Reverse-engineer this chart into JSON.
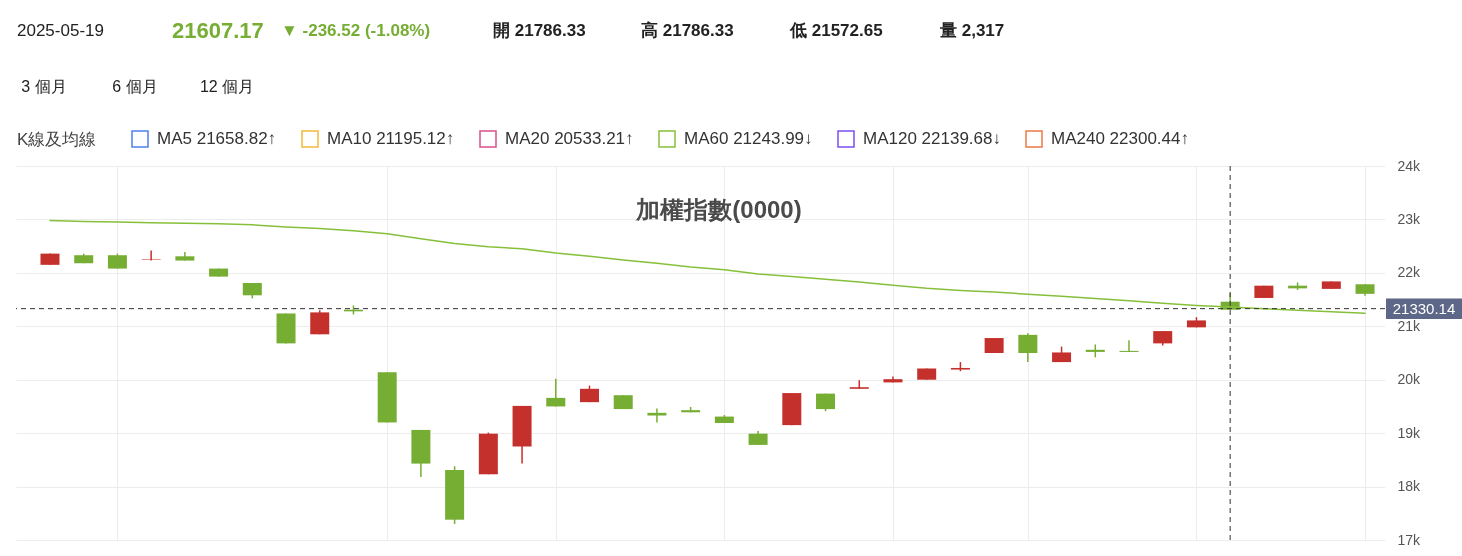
{
  "chart_data": {
    "type": "candlestick",
    "title": "加權指數(0000)",
    "annotations": [
      "2025-05-19",
      "21607.17",
      "▼ -236.52 (-1.08%)",
      "開 21786.33",
      "高 21786.33",
      "低 21572.65",
      "量 2,317",
      "3 個月",
      "6 個月",
      "12 個月"
    ],
    "categories": [
      null,
      null,
      null,
      null,
      null,
      null,
      null,
      null,
      null,
      null,
      null,
      null,
      null,
      null,
      null,
      null,
      null,
      null,
      null,
      null,
      null,
      null,
      null,
      null,
      null,
      null,
      null,
      null,
      null,
      null,
      null,
      null,
      null,
      null,
      null,
      null,
      null,
      null,
      null,
      null
    ],
    "ohlc": [
      [
        22150,
        22360,
        22150,
        22360
      ],
      [
        22330,
        22360,
        22180,
        22180
      ],
      [
        22330,
        22360,
        22080,
        22080
      ],
      [
        22250,
        22420,
        22230,
        22260
      ],
      [
        22310,
        22390,
        22230,
        22230
      ],
      [
        22080,
        22080,
        21930,
        21930
      ],
      [
        21810,
        21810,
        21520,
        21580
      ],
      [
        21240,
        21240,
        20680,
        20680
      ],
      [
        20850,
        21300,
        20850,
        21260
      ],
      [
        21310,
        21390,
        21220,
        21280
      ],
      [
        20140,
        20140,
        19200,
        19200
      ],
      [
        19060,
        19060,
        18180,
        18430
      ],
      [
        18310,
        18380,
        17300,
        17380
      ],
      [
        18230,
        19010,
        18230,
        18990
      ],
      [
        18750,
        19510,
        18430,
        19510
      ],
      [
        19660,
        20020,
        19500,
        19500
      ],
      [
        19580,
        19890,
        19580,
        19830
      ],
      [
        19710,
        19710,
        19450,
        19450
      ],
      [
        19380,
        19460,
        19200,
        19330
      ],
      [
        19430,
        19490,
        19390,
        19390
      ],
      [
        19310,
        19340,
        19190,
        19190
      ],
      [
        18990,
        19040,
        18780,
        18780
      ],
      [
        19150,
        19750,
        19150,
        19750
      ],
      [
        19740,
        19740,
        19410,
        19450
      ],
      [
        19830,
        19990,
        19830,
        19860
      ],
      [
        19950,
        20060,
        19950,
        20010
      ],
      [
        20000,
        20210,
        20000,
        20210
      ],
      [
        20190,
        20330,
        20160,
        20220
      ],
      [
        20500,
        20780,
        20500,
        20780
      ],
      [
        20840,
        20870,
        20330,
        20500
      ],
      [
        20330,
        20620,
        20330,
        20510
      ],
      [
        20560,
        20660,
        20420,
        20520
      ],
      [
        20540,
        20740,
        20520,
        20520
      ],
      [
        20680,
        20910,
        20640,
        20910
      ],
      [
        20980,
        21170,
        20980,
        21110
      ],
      [
        21460,
        21620,
        21310,
        21310
      ],
      [
        21530,
        21760,
        21530,
        21760
      ],
      [
        21760,
        21820,
        21680,
        21710
      ],
      [
        21700,
        21840,
        21700,
        21840
      ],
      [
        21786.33,
        21786.33,
        21572.65,
        21607.17
      ]
    ],
    "colors": [
      "#c4302b",
      "#76ad33",
      "#76ad33",
      "#c4302b",
      "#76ad33",
      "#76ad33",
      "#76ad33",
      "#76ad33",
      "#c4302b",
      "#76ad33",
      "#76ad33",
      "#76ad33",
      "#76ad33",
      "#c4302b",
      "#c4302b",
      "#76ad33",
      "#c4302b",
      "#76ad33",
      "#76ad33",
      "#76ad33",
      "#76ad33",
      "#76ad33",
      "#c4302b",
      "#76ad33",
      "#c4302b",
      "#c4302b",
      "#c4302b",
      "#c4302b",
      "#c4302b",
      "#76ad33",
      "#c4302b",
      "#76ad33",
      "#76ad33",
      "#c4302b",
      "#c4302b",
      "#76ad33",
      "#c4302b",
      "#76ad33",
      "#c4302b",
      "#76ad33"
    ],
    "series": [
      {
        "name": "MA5 21658.82↑",
        "color": "#4f80f0",
        "type": "line",
        "values": [
          null,
          null,
          null,
          null,
          null,
          null,
          null,
          null,
          null,
          null,
          null,
          null,
          null,
          null,
          null,
          null,
          null,
          null,
          null,
          null,
          null,
          null,
          null,
          null,
          null,
          null,
          null,
          null,
          null,
          null,
          null,
          null,
          null,
          null,
          null,
          null,
          null,
          null,
          null,
          null
        ]
      },
      {
        "name": "MA10 21195.12↑",
        "color": "#f4b93c",
        "type": "line",
        "values": [
          null,
          null,
          null,
          null,
          null,
          null,
          null,
          null,
          null,
          null,
          null,
          null,
          null,
          null,
          null,
          null,
          null,
          null,
          null,
          null,
          null,
          null,
          null,
          null,
          null,
          null,
          null,
          null,
          null,
          null,
          null,
          null,
          null,
          null,
          null,
          null,
          null,
          null,
          null,
          null
        ]
      },
      {
        "name": "MA20 20533.21↑",
        "color": "#d9508a",
        "type": "line",
        "values": [
          null,
          null,
          null,
          null,
          null,
          null,
          null,
          null,
          null,
          null,
          null,
          null,
          null,
          null,
          null,
          null,
          null,
          null,
          null,
          null,
          null,
          null,
          null,
          null,
          null,
          null,
          null,
          null,
          null,
          null,
          null,
          null,
          null,
          null,
          null,
          null,
          null,
          null,
          null,
          null
        ]
      },
      {
        "name": "MA60 21243.99↓",
        "color": "#86c03a",
        "type": "line",
        "values": [
          22980,
          22960,
          22950,
          22940,
          22930,
          22920,
          22900,
          22860,
          22830,
          22790,
          22730,
          22640,
          22550,
          22490,
          22450,
          22370,
          22310,
          22240,
          22180,
          22110,
          22060,
          21980,
          21930,
          21880,
          21830,
          21770,
          21710,
          21670,
          21640,
          21600,
          21560,
          21520,
          21480,
          21430,
          21390,
          21360,
          21330,
          21300,
          21270,
          21243.99
        ]
      },
      {
        "name": "MA120 22139.68↓",
        "color": "#7b4fef",
        "type": "line",
        "values": [
          null,
          null,
          null,
          null,
          null,
          null,
          null,
          null,
          null,
          null,
          null,
          null,
          null,
          null,
          null,
          null,
          null,
          null,
          null,
          null,
          null,
          null,
          null,
          null,
          null,
          null,
          null,
          null,
          null,
          null,
          null,
          null,
          null,
          null,
          null,
          null,
          null,
          null,
          null,
          null
        ]
      },
      {
        "name": "MA240 22300.44↑",
        "color": "#ec7a46",
        "type": "line",
        "values": [
          null,
          null,
          null,
          null,
          null,
          null,
          null,
          null,
          null,
          null,
          null,
          null,
          null,
          null,
          null,
          null,
          null,
          null,
          null,
          null,
          null,
          null,
          null,
          null,
          null,
          null,
          null,
          null,
          null,
          null,
          null,
          null,
          null,
          null,
          null,
          null,
          null,
          null,
          null,
          null
        ]
      }
    ],
    "ylim": [
      17000,
      24000
    ],
    "yticks": [
      {
        "value": 17000,
        "label": "17k"
      },
      {
        "value": 18000,
        "label": "18k"
      },
      {
        "value": 19000,
        "label": "19k"
      },
      {
        "value": 20000,
        "label": "20k"
      },
      {
        "value": 21000,
        "label": "21k"
      },
      {
        "value": 22000,
        "label": "22k"
      },
      {
        "value": 23000,
        "label": "23k"
      },
      {
        "value": 24000,
        "label": "24k"
      }
    ],
    "ref_lines": [
      {
        "axis": "y",
        "value": 21330.14,
        "label": "21330.14",
        "color": "#333333",
        "line_style": "dashed"
      }
    ],
    "grid": true,
    "legend": "top left",
    "legend_title": "K線及均線",
    "tick_labels": "y"
  }
}
